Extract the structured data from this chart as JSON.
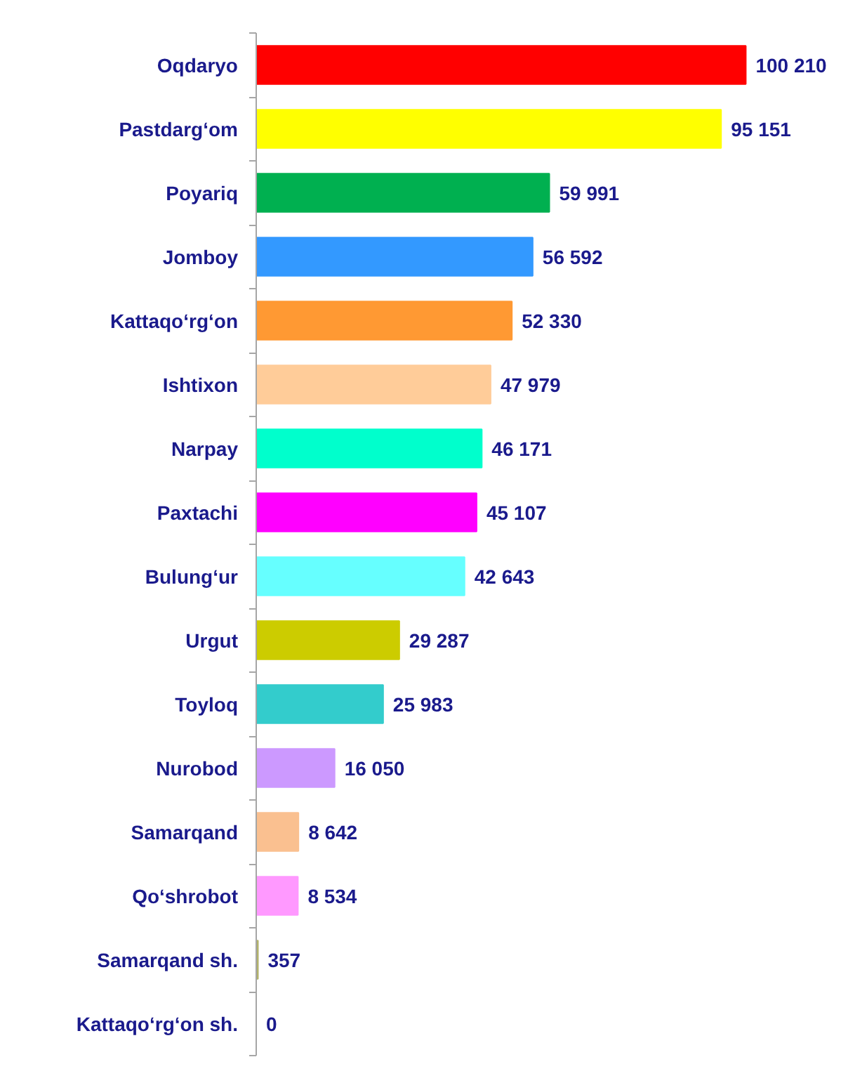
{
  "chart_data": {
    "type": "bar",
    "orientation": "horizontal",
    "tick_labels": "y",
    "categories": [
      "Oqdaryo",
      "Pastdarg‘om",
      "Poyariq",
      "Jomboy",
      "Kattaqo‘rg‘on",
      "Ishtixon",
      "Narpay",
      "Paxtachi",
      "Bulung‘ur",
      "Urgut",
      "Toyloq",
      "Nurobod",
      "Samarqand",
      "Qo‘shrobot",
      "Samarqand sh.",
      "Kattaqo‘rg‘on sh."
    ],
    "values": [
      100210,
      95151,
      59991,
      56592,
      52330,
      47979,
      46171,
      45107,
      42643,
      29287,
      25983,
      16050,
      8642,
      8534,
      357,
      0
    ],
    "value_labels": [
      "100 210",
      "95 151",
      "59 991",
      "56 592",
      "52 330",
      "47 979",
      "46 171",
      "45 107",
      "42 643",
      "29 287",
      "25 983",
      "16 050",
      "8 642",
      "8 534",
      "357",
      "0"
    ],
    "colors": [
      "#ff0000",
      "#ffff00",
      "#00b050",
      "#3399ff",
      "#ff9933",
      "#ffcc99",
      "#00ffcc",
      "#ff00ff",
      "#66ffff",
      "#cccc00",
      "#33cccc",
      "#cc99ff",
      "#fac090",
      "#ff99ff",
      "#b3b36b",
      "#0e8aa0"
    ]
  }
}
